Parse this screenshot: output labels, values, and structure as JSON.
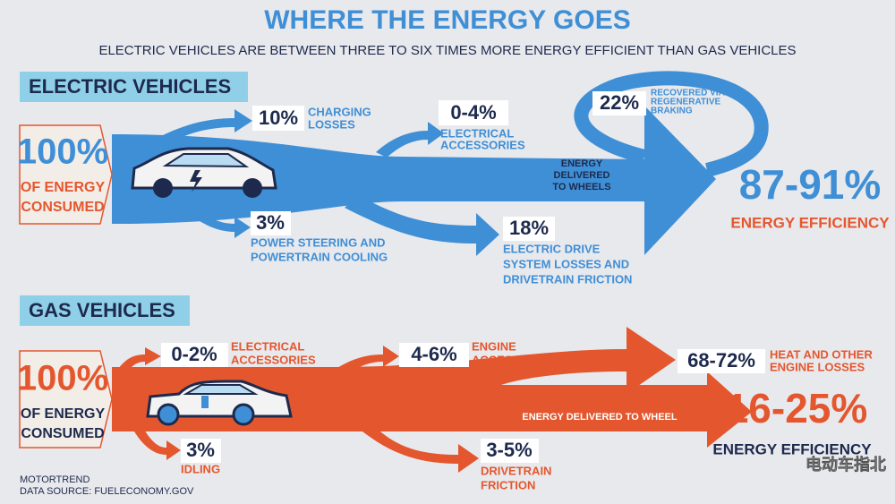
{
  "header": {
    "title": "WHERE THE ENERGY GOES",
    "subtitle": "ELECTRIC VEHICLES ARE BETWEEN THREE TO SIX TIMES MORE ENERGY EFFICIENT THAN GAS VEHICLES"
  },
  "electric": {
    "heading": "ELECTRIC VEHICLES",
    "input": {
      "value": "100%",
      "label": [
        "OF ENERGY",
        "CONSUMED"
      ]
    },
    "flows": [
      {
        "value": "10%",
        "label": [
          "CHARGING",
          "LOSSES"
        ]
      },
      {
        "value": "0-4%",
        "label": [
          "ELECTRICAL",
          "ACCESSORIES"
        ]
      },
      {
        "value": "22%",
        "label": [
          "RECOVERED VIA",
          "REGENERATIVE",
          "BRAKING"
        ]
      },
      {
        "value": "3%",
        "label": [
          "POWER STEERING AND",
          "POWERTRAIN COOLING"
        ]
      },
      {
        "value": "18%",
        "label": [
          "ELECTRIC DRIVE",
          "SYSTEM LOSSES AND",
          "DRIVETRAIN FRICTION"
        ]
      }
    ],
    "main_flow": [
      "ENERGY",
      "DELIVERED",
      "TO WHEELS"
    ],
    "output": {
      "value": "87-91%",
      "label": "ENERGY EFFICIENCY"
    }
  },
  "gas": {
    "heading": "GAS VEHICLES",
    "input": {
      "value": "100%",
      "label": [
        "OF ENERGY",
        "CONSUMED"
      ]
    },
    "flows": [
      {
        "value": "0-2%",
        "label": [
          "ELECTRICAL",
          "ACCESSORIES"
        ]
      },
      {
        "value": "4-6%",
        "label": [
          "ENGINE",
          "ACCESSORIES"
        ]
      },
      {
        "value": "68-72%",
        "label": [
          "HEAT AND OTHER",
          "ENGINE LOSSES"
        ]
      },
      {
        "value": "3%",
        "label": [
          "IDLING"
        ]
      },
      {
        "value": "3-5%",
        "label": [
          "DRIVETRAIN",
          "FRICTION"
        ]
      }
    ],
    "main_flow": "ENERGY DELIVERED TO WHEEL",
    "output": {
      "value": "16-25%",
      "label": "ENERGY EFFICIENCY"
    }
  },
  "footer": {
    "lines": [
      "MOTORTREND",
      "DATA SOURCE: FUELECONOMY.GOV"
    ],
    "watermark": "电动车指北"
  }
}
